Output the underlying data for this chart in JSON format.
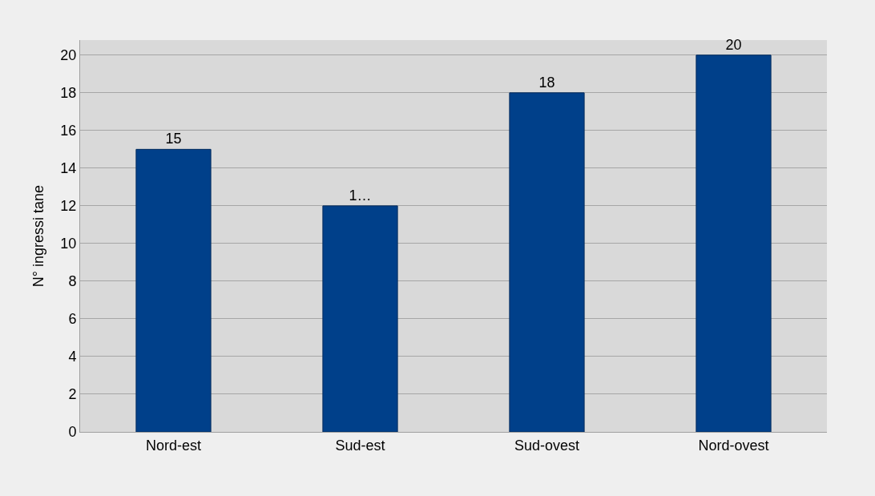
{
  "chart_data": {
    "type": "bar",
    "ylabel": "N° ingressi tane",
    "categories": [
      "Nord-est",
      "Sud-est",
      "Sud-ovest",
      "Nord-ovest"
    ],
    "values": [
      15,
      12,
      18,
      20
    ],
    "value_labels": [
      "15",
      "1…",
      "18",
      "20"
    ],
    "color": "#00408a",
    "ylim": [
      0,
      20.8
    ],
    "yticks": [
      0,
      2,
      4,
      6,
      8,
      10,
      12,
      14,
      16,
      18,
      20
    ],
    "grid": "y"
  }
}
